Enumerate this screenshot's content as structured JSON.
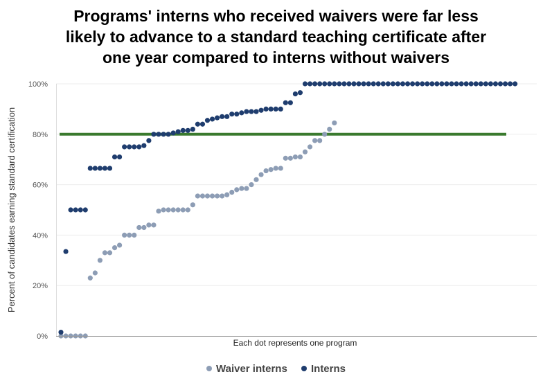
{
  "title_lines": [
    "Programs' interns who received waivers were far less",
    "likely to advance to a standard teaching certificate after",
    "one year compared to interns without waivers"
  ],
  "chart_data": {
    "type": "scatter",
    "title": "Programs' interns who received waivers were far less likely to advance to a standard teaching certificate after one year compared to interns without waivers",
    "xlabel": "Each dot represents one program",
    "ylabel": "Percent of candidates earning standard certification",
    "ylim": [
      0,
      100
    ],
    "y_ticks": [
      "0%",
      "20%",
      "40%",
      "60%",
      "80%",
      "100%"
    ],
    "reference_line": {
      "value": 80,
      "color": "#3a7a2e"
    },
    "legend_position": "bottom",
    "grid": true,
    "series": [
      {
        "name": "Waiver interns",
        "color": "#8d9db5",
        "values": [
          0,
          0,
          0,
          0,
          0,
          0,
          23,
          25,
          30,
          33,
          33,
          35,
          36,
          40,
          40,
          40,
          43,
          43,
          44,
          44,
          49.5,
          50,
          50,
          50,
          50,
          50,
          50,
          52,
          55.5,
          55.5,
          55.5,
          55.5,
          55.5,
          55.5,
          56,
          57,
          58,
          58.5,
          58.5,
          60,
          62,
          64,
          65.5,
          66,
          66.5,
          66.5,
          70.5,
          70.5,
          71,
          71,
          73,
          75,
          77.5,
          77.5,
          80,
          82,
          84.5
        ]
      },
      {
        "name": "Interns",
        "color": "#1f3d6e",
        "values": [
          1.5,
          33.5,
          50,
          50,
          50,
          50,
          66.5,
          66.5,
          66.5,
          66.5,
          66.5,
          71,
          71,
          75,
          75,
          75,
          75,
          75.5,
          77.5,
          80,
          80,
          80,
          80,
          80.5,
          81,
          81.5,
          81.5,
          82,
          84,
          84,
          85.5,
          86,
          86.5,
          87,
          87,
          88,
          88,
          88.5,
          89,
          89,
          89,
          89.5,
          90,
          90,
          90,
          90,
          92.5,
          92.5,
          96,
          96.5,
          100,
          100,
          100,
          100,
          100,
          100,
          100,
          100,
          100,
          100,
          100,
          100,
          100,
          100,
          100,
          100,
          100,
          100,
          100,
          100,
          100,
          100,
          100,
          100,
          100,
          100,
          100,
          100,
          100,
          100,
          100,
          100,
          100,
          100,
          100,
          100,
          100,
          100,
          100,
          100,
          100,
          100,
          100,
          100
        ]
      }
    ]
  },
  "legend": [
    {
      "label": "Waiver interns",
      "color": "#8d9db5"
    },
    {
      "label": "Interns",
      "color": "#1f3d6e"
    }
  ]
}
